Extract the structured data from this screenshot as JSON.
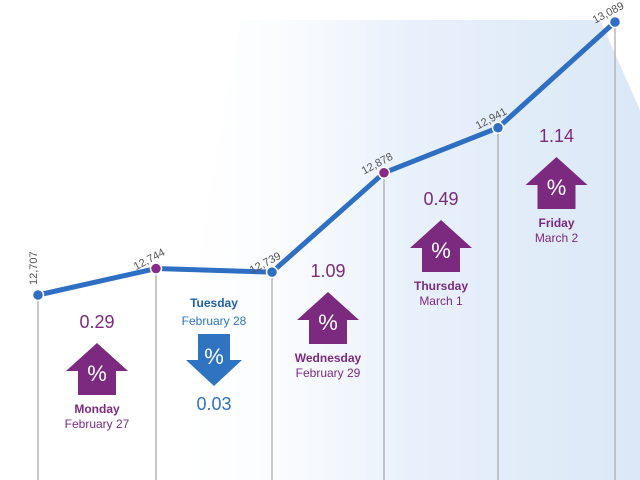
{
  "chart_data": {
    "type": "line",
    "values": [
      12707,
      12744,
      12739,
      12878,
      12941,
      13089
    ],
    "value_labels": [
      "12,707",
      "12,744",
      "12,739",
      "12,878",
      "12,941",
      "13,089"
    ],
    "color": "#2f6fc3",
    "marker_colors": [
      "#2f6fc3",
      "#8a2a88",
      "#2f6fc3",
      "#8a2a88",
      "#2f6fc3",
      "#2f6fc3"
    ],
    "symbol": "%",
    "changes": [
      {
        "day": "Monday",
        "date": "February 27",
        "value": 0.29,
        "direction": "up",
        "color": "#7b2a80"
      },
      {
        "day": "Tuesday",
        "date": "February 28",
        "value": 0.03,
        "direction": "down",
        "color": "#2e74c0"
      },
      {
        "day": "Wednesday",
        "date": "February 29",
        "value": 1.09,
        "direction": "up",
        "color": "#7b2a80"
      },
      {
        "day": "Thursday",
        "date": "March 1",
        "value": 0.49,
        "direction": "up",
        "color": "#7b2a80"
      },
      {
        "day": "Friday",
        "date": "March 2",
        "value": 1.14,
        "direction": "up",
        "color": "#7b2a80"
      }
    ]
  }
}
